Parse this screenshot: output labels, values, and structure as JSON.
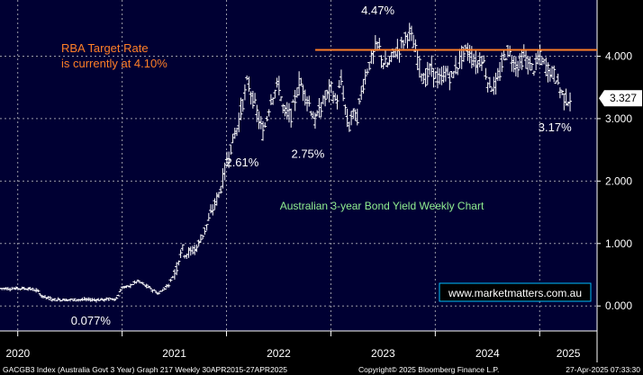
{
  "colors": {
    "plot_bg": "#000033",
    "bar": "#ffffff",
    "grid": "#9a9aa8",
    "target_line": "#ff7f27",
    "annotation": "#ffffff",
    "subtitle": "#90ee90",
    "watermark": "#ffffff",
    "watermark_border": "#00bfff",
    "footer_bg": "#000000",
    "footer_text": "#ffffff",
    "axis_panel": "#000000",
    "last_price_bg": "#ffffff",
    "last_price_text": "#000000"
  },
  "chart_data": {
    "type": "line",
    "style": "OHLC bars (weekly)",
    "subtitle": "Australian 3-year Bond Yield Weekly Chart",
    "target_label_line1": "RBA Target Rate",
    "target_label_line2": "is currently at 4.10%",
    "target_rate": 4.1,
    "last_price_label": "3.327",
    "last_price": 3.327,
    "ylim": [
      -0.4,
      4.9
    ],
    "xlim": [
      2019.83,
      2025.55
    ],
    "y_ticks": [
      0.0,
      1.0,
      2.0,
      3.0,
      4.0
    ],
    "y_tick_labels": [
      "0.000",
      "1.000",
      "2.000",
      "3.000",
      "4.000"
    ],
    "x_tick_labels": [
      "2020",
      "2021",
      "2022",
      "2023",
      "2024",
      "2025"
    ],
    "x_tick_positions": [
      2020.0,
      2021.0,
      2022.0,
      2023.0,
      2024.0,
      2025.0
    ],
    "grid": true,
    "series": [
      {
        "x": [
          2019.83,
          2020.1,
          2020.18,
          2020.24,
          2020.35,
          2020.55,
          2020.7,
          2020.82,
          2020.95,
          2021.0,
          2021.05,
          2021.15,
          2021.25,
          2021.35,
          2021.45,
          2021.52,
          2021.57,
          2021.6,
          2021.65,
          2021.72,
          2021.8,
          2021.88,
          2021.95,
          2022.0,
          2022.05,
          2022.1,
          2022.15,
          2022.2,
          2022.3,
          2022.35,
          2022.43,
          2022.5,
          2022.55,
          2022.62,
          2022.7,
          2022.78,
          2022.85,
          2022.92,
          2023.0,
          2023.05,
          2023.1,
          2023.17,
          2023.2,
          2023.25,
          2023.3,
          2023.35,
          2023.4,
          2023.45,
          2023.5,
          2023.55,
          2023.6,
          2023.65,
          2023.7,
          2023.75,
          2023.8,
          2023.85,
          2023.9,
          2023.95,
          2024.0,
          2024.05,
          2024.1,
          2024.15,
          2024.2,
          2024.25,
          2024.3,
          2024.35,
          2024.4,
          2024.45,
          2024.5,
          2024.55,
          2024.6,
          2024.65,
          2024.7,
          2024.75,
          2024.8,
          2024.85,
          2024.9,
          2024.95,
          2025.0,
          2025.05,
          2025.1,
          2025.15,
          2025.2,
          2025.25,
          2025.3
        ],
        "y": [
          0.28,
          0.28,
          0.25,
          0.15,
          0.1,
          0.1,
          0.1,
          0.1,
          0.12,
          0.3,
          0.3,
          0.4,
          0.3,
          0.2,
          0.35,
          0.6,
          0.95,
          0.85,
          0.85,
          0.95,
          1.25,
          1.6,
          1.9,
          2.3,
          2.6,
          2.85,
          3.2,
          3.6,
          3.05,
          2.75,
          3.35,
          3.55,
          3.1,
          3.05,
          3.6,
          3.3,
          2.95,
          3.25,
          3.5,
          3.25,
          3.6,
          2.8,
          3.1,
          3.0,
          3.5,
          3.8,
          4.0,
          4.2,
          3.9,
          3.85,
          4.05,
          4.1,
          4.25,
          4.4,
          4.15,
          3.85,
          3.6,
          3.8,
          3.7,
          3.6,
          3.75,
          3.65,
          3.8,
          4.0,
          4.1,
          4.0,
          3.85,
          4.0,
          3.6,
          3.5,
          3.6,
          3.95,
          4.1,
          3.9,
          3.85,
          4.0,
          3.85,
          3.8,
          4.0,
          3.85,
          3.75,
          3.7,
          3.45,
          3.3,
          3.327
        ]
      }
    ],
    "annotations": [
      {
        "text": "4.47%",
        "x": 2023.45,
        "y": 4.47
      },
      {
        "text": "2.61%",
        "x": 2022.15,
        "y": 2.61
      },
      {
        "text": "2.75%",
        "x": 2022.78,
        "y": 2.75
      },
      {
        "text": "0.077%",
        "x": 2020.7,
        "y": 0.077
      },
      {
        "text": "3.17%",
        "x": 2025.25,
        "y": 3.17
      }
    ]
  },
  "watermark": "www.marketmatters.com.au",
  "footer": {
    "left": "GACGB3 Index (Australia Govt 3 Year) Graph 217  Weekly 30APR2015-27APR2025",
    "center": "Copyright© 2025 Bloomberg Finance L.P.",
    "right": "27-Apr-2025 07:33:30"
  }
}
